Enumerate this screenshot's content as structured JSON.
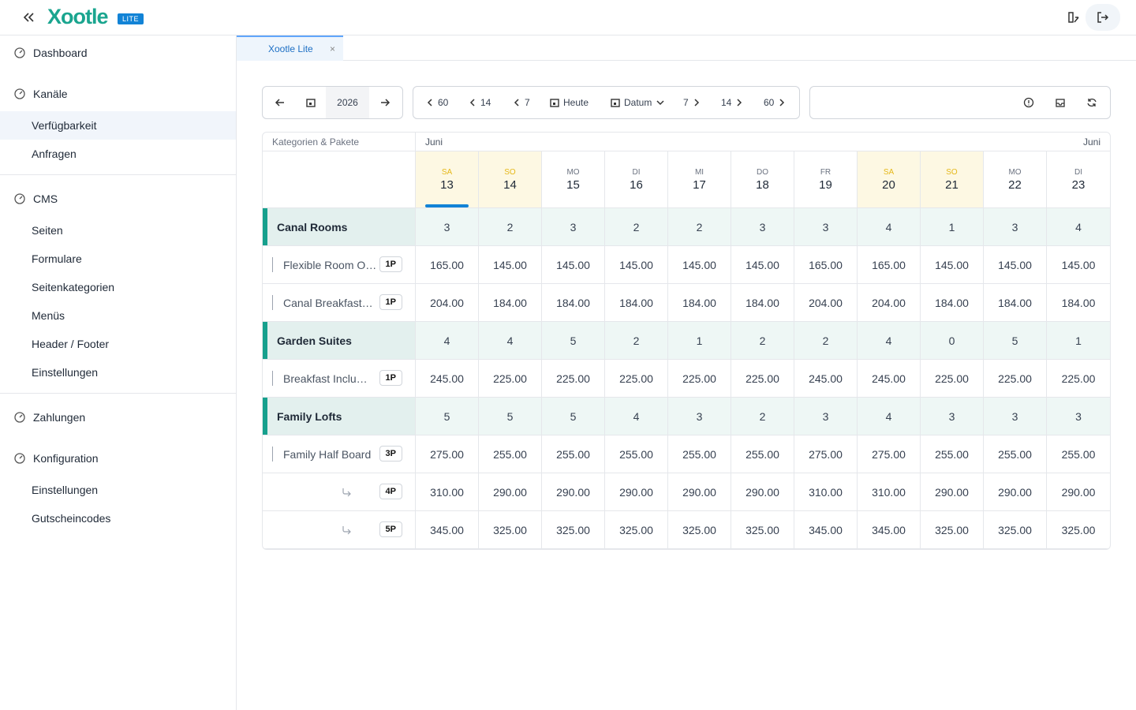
{
  "header": {
    "logo": "Xootle",
    "badge": "LITE"
  },
  "sidebar": {
    "sections": [
      {
        "label": "Dashboard",
        "items": []
      },
      {
        "label": "Kanäle",
        "items": [
          "Verfügbarkeit",
          "Anfragen"
        ],
        "divider": true
      },
      {
        "label": "CMS",
        "items": [
          "Seiten",
          "Formulare",
          "Seitenkategorien",
          "Menüs",
          "Header / Footer",
          "Einstellungen"
        ],
        "divider": true
      },
      {
        "label": "Zahlungen",
        "items": []
      },
      {
        "label": "Konfiguration",
        "items": [
          "Einstellungen",
          "Gutscheincodes"
        ]
      }
    ],
    "active": "Verfügbarkeit"
  },
  "tab": {
    "label": "Xootle Lite"
  },
  "toolbar": {
    "year": "2026",
    "nav": [
      "60",
      "14",
      "7",
      "Heute",
      "Datum",
      "7",
      "14",
      "60"
    ]
  },
  "grid": {
    "corner": "Kategorien & Pakete",
    "month_start": "Juni",
    "month_end": "Juni",
    "days": [
      {
        "dow": "SA",
        "day": "13",
        "weekend": true
      },
      {
        "dow": "SO",
        "day": "14",
        "weekend": true
      },
      {
        "dow": "MO",
        "day": "15"
      },
      {
        "dow": "DI",
        "day": "16"
      },
      {
        "dow": "MI",
        "day": "17"
      },
      {
        "dow": "DO",
        "day": "18"
      },
      {
        "dow": "FR",
        "day": "19"
      },
      {
        "dow": "SA",
        "day": "20",
        "weekend": true
      },
      {
        "dow": "SO",
        "day": "21",
        "weekend": true
      },
      {
        "dow": "MO",
        "day": "22"
      },
      {
        "dow": "DI",
        "day": "23"
      }
    ],
    "rows": [
      {
        "kind": "category",
        "name": "Canal Rooms",
        "values": [
          3,
          2,
          3,
          2,
          2,
          3,
          3,
          4,
          1,
          3,
          4
        ]
      },
      {
        "kind": "package",
        "name": "Flexible Room O…",
        "badge": "1P",
        "values": [
          "165.00",
          "145.00",
          "145.00",
          "145.00",
          "145.00",
          "145.00",
          "165.00",
          "165.00",
          "145.00",
          "145.00",
          "145.00"
        ]
      },
      {
        "kind": "package",
        "name": "Canal Breakfast…",
        "badge": "1P",
        "values": [
          "204.00",
          "184.00",
          "184.00",
          "184.00",
          "184.00",
          "184.00",
          "204.00",
          "204.00",
          "184.00",
          "184.00",
          "184.00"
        ]
      },
      {
        "kind": "category",
        "name": "Garden Suites",
        "values": [
          4,
          4,
          5,
          2,
          1,
          2,
          2,
          4,
          0,
          5,
          1
        ]
      },
      {
        "kind": "package",
        "name": "Breakfast Inclu…",
        "badge": "1P",
        "values": [
          "245.00",
          "225.00",
          "225.00",
          "225.00",
          "225.00",
          "225.00",
          "245.00",
          "245.00",
          "225.00",
          "225.00",
          "225.00"
        ]
      },
      {
        "kind": "category",
        "name": "Family Lofts",
        "values": [
          5,
          5,
          5,
          4,
          3,
          2,
          3,
          4,
          3,
          3,
          3
        ]
      },
      {
        "kind": "package",
        "name": "Family Half Board",
        "badge": "3P",
        "values": [
          "275.00",
          "255.00",
          "255.00",
          "255.00",
          "255.00",
          "255.00",
          "275.00",
          "275.00",
          "255.00",
          "255.00",
          "255.00"
        ]
      },
      {
        "kind": "sub",
        "badge": "4P",
        "values": [
          "310.00",
          "290.00",
          "290.00",
          "290.00",
          "290.00",
          "290.00",
          "310.00",
          "310.00",
          "290.00",
          "290.00",
          "290.00"
        ]
      },
      {
        "kind": "sub",
        "badge": "5P",
        "values": [
          "345.00",
          "325.00",
          "325.00",
          "325.00",
          "325.00",
          "325.00",
          "345.00",
          "345.00",
          "325.00",
          "325.00",
          "325.00"
        ]
      }
    ]
  }
}
